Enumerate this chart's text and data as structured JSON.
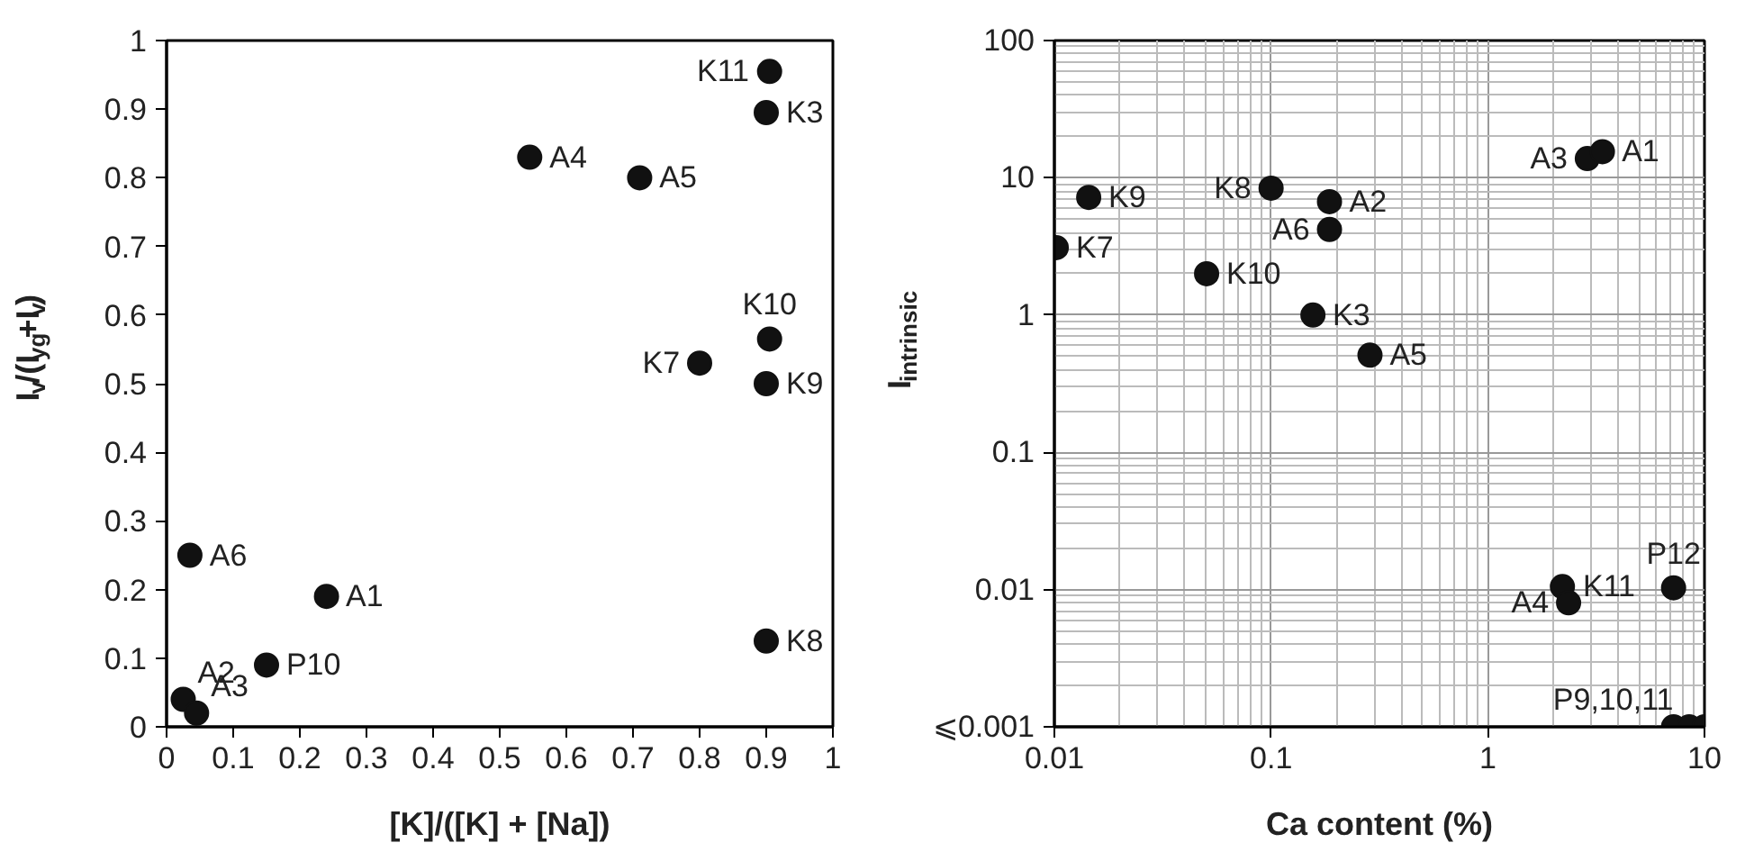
{
  "chart_data": [
    {
      "type": "scatter",
      "xlabel": "[K]/([K] + [Na])",
      "ylabel": "I$_{v}$/(I$_{yg}$+I$_{v}$)",
      "x": [
        0.025,
        0.045,
        0.035,
        0.24,
        0.15,
        0.545,
        0.71,
        0.905,
        0.9,
        0.8,
        0.905,
        0.9,
        0.9
      ],
      "series": [
        {
          "color": "#111111",
          "values": [
            0.04,
            0.02,
            0.25,
            0.19,
            0.09,
            0.83,
            0.8,
            0.955,
            0.895,
            0.53,
            0.565,
            0.5,
            0.125
          ]
        }
      ],
      "xlim": [
        0,
        1
      ],
      "ylim": [
        0,
        1
      ],
      "xticks": [
        0,
        0.1,
        0.2,
        0.3,
        0.4,
        0.5,
        0.6,
        0.7,
        0.8,
        0.9,
        1
      ],
      "yticks": [
        0,
        0.1,
        0.2,
        0.3,
        0.4,
        0.5,
        0.6,
        0.7,
        0.8,
        0.9,
        1
      ],
      "marker": "circle",
      "grid": false,
      "annotations": [
        {
          "text": "A2",
          "x": 0.025,
          "y": 0.04
        },
        {
          "text": "A3",
          "x": 0.045,
          "y": 0.02
        },
        {
          "text": "A6",
          "x": 0.035,
          "y": 0.25
        },
        {
          "text": "A1",
          "x": 0.24,
          "y": 0.19
        },
        {
          "text": "P10",
          "x": 0.15,
          "y": 0.09
        },
        {
          "text": "A4",
          "x": 0.545,
          "y": 0.83
        },
        {
          "text": "A5",
          "x": 0.71,
          "y": 0.8
        },
        {
          "text": "K11",
          "x": 0.905,
          "y": 0.955
        },
        {
          "text": "K3",
          "x": 0.9,
          "y": 0.895
        },
        {
          "text": "K7",
          "x": 0.8,
          "y": 0.53
        },
        {
          "text": "K10",
          "x": 0.905,
          "y": 0.565
        },
        {
          "text": "K9",
          "x": 0.9,
          "y": 0.5
        },
        {
          "text": "K8",
          "x": 0.9,
          "y": 0.125
        }
      ]
    },
    {
      "type": "scatter",
      "xlabel": "Ca content (%)",
      "ylabel": "I$_{intrinsic}$",
      "x": [
        0.0144,
        0.0102,
        0.1,
        0.186,
        0.186,
        0.0504,
        0.156,
        0.286,
        2.88,
        3.38,
        2.21,
        2.36,
        7.2,
        7.2,
        8.5,
        10
      ],
      "series": [
        {
          "color": "#111111",
          "values": [
            7.2,
            3.1,
            8.4,
            6.7,
            4.2,
            2.0,
            1.0,
            0.51,
            13.8,
            15.5,
            0.0105,
            0.008,
            0.0103,
            0.001,
            0.001,
            0.001
          ]
        }
      ],
      "xlim": [
        0.01,
        10
      ],
      "ylim": [
        0.001,
        100
      ],
      "xticks": [
        0.01,
        0.1,
        1,
        10
      ],
      "yticks": [
        {
          "value": 0.001,
          "label": "⩽0.001"
        },
        0.01,
        0.1,
        1,
        10,
        100
      ],
      "log": "xy",
      "marker": "circle",
      "grid": true,
      "annotations": [
        {
          "text": "K8",
          "x": 0.1,
          "y": 8.4
        },
        {
          "text": "K9",
          "x": 0.0144,
          "y": 7.2
        },
        {
          "text": "K7",
          "x": 0.0102,
          "y": 3.1
        },
        {
          "text": "K10",
          "x": 0.0504,
          "y": 2.0
        },
        {
          "text": "A2",
          "x": 0.186,
          "y": 6.7
        },
        {
          "text": "A6",
          "x": 0.186,
          "y": 4.2
        },
        {
          "text": "K3",
          "x": 0.156,
          "y": 1.0
        },
        {
          "text": "A5",
          "x": 0.286,
          "y": 0.51
        },
        {
          "text": "A3",
          "x": 2.88,
          "y": 13.8
        },
        {
          "text": "A1",
          "x": 3.38,
          "y": 15.5
        },
        {
          "text": "K11",
          "x": 2.21,
          "y": 0.0105
        },
        {
          "text": "A4",
          "x": 2.36,
          "y": 0.008
        },
        {
          "text": "P12",
          "x": 7.2,
          "y": 0.0103
        },
        {
          "text": "P9,10,11",
          "x": 8.5,
          "y": 0.001
        }
      ]
    }
  ]
}
